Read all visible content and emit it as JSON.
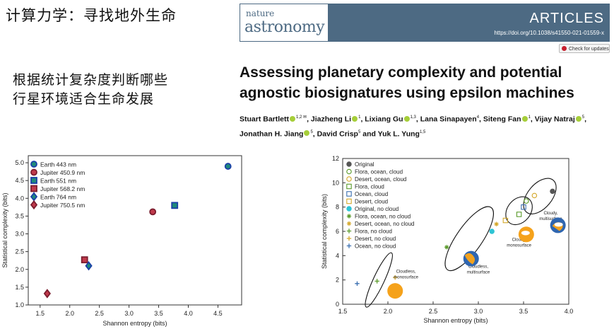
{
  "slide": {
    "title": "计算力学：寻找地外生命",
    "subtitle_line1": "根据统计复杂度判断哪些",
    "subtitle_line2": "行星环境适合生命发展"
  },
  "journal": {
    "name_top": "nature",
    "name_bottom": "astronomy",
    "section": "ARTICLES",
    "doi": "https://doi.org/10.1038/s41550-021-01559-x",
    "check_updates": "Check for updates"
  },
  "article": {
    "title_line1": "Assessing planetary complexity and potential",
    "title_line2": "agnostic biosignatures using epsilon machines"
  },
  "authors": [
    {
      "name": "Stuart Bartlett",
      "orcid": true,
      "sup": "1,2 ✉"
    },
    {
      "name": "Jiazheng Li",
      "orcid": true,
      "sup": "1"
    },
    {
      "name": "Lixiang Gu",
      "orcid": true,
      "sup": "1,3"
    },
    {
      "name": "Lana Sinapayen",
      "orcid": false,
      "sup": "4"
    },
    {
      "name": "Siteng Fan",
      "orcid": true,
      "sup": "1"
    },
    {
      "name": "Vijay Natraj",
      "orcid": true,
      "sup": "5"
    },
    {
      "name": "Jonathan H. Jiang",
      "orcid": true,
      "sup": "5"
    },
    {
      "name": "David Crisp",
      "orcid": false,
      "sup": "5"
    },
    {
      "name": "Yuk L. Yung",
      "orcid": false,
      "sup": "1,5"
    }
  ],
  "chart_data": [
    {
      "type": "scatter",
      "xlabel": "Shannon entropy (bits)",
      "ylabel": "Statistical complexity (bits)",
      "xlim": [
        1.3,
        4.9
      ],
      "ylim": [
        1.0,
        5.2
      ],
      "xticks": [
        1.5,
        2.0,
        2.5,
        3.0,
        3.5,
        4.0,
        4.5
      ],
      "yticks": [
        1.0,
        1.5,
        2.0,
        2.5,
        3.0,
        3.5,
        4.0,
        4.5,
        5.0
      ],
      "legend_position": "top-left",
      "series": [
        {
          "name": "Earth 443 nm",
          "marker": "circle",
          "fill": "#1e8a7a",
          "edge": "#1a3fa8",
          "points": [
            [
              4.67,
              4.9
            ]
          ]
        },
        {
          "name": "Jupiter 450.9 nm",
          "marker": "circle",
          "fill": "#c0394b",
          "edge": "#7a1d2e",
          "points": [
            [
              3.4,
              3.62
            ]
          ]
        },
        {
          "name": "Earth 551 nm",
          "marker": "square",
          "fill": "#1e8a7a",
          "edge": "#1a3fa8",
          "points": [
            [
              3.77,
              3.8
            ]
          ]
        },
        {
          "name": "Jupiter 568.2 nm",
          "marker": "square",
          "fill": "#c0394b",
          "edge": "#7a1d2e",
          "points": [
            [
              2.25,
              2.27
            ]
          ]
        },
        {
          "name": "Earth 764 nm",
          "marker": "diamond",
          "fill": "#1e8a7a",
          "edge": "#1a3fa8",
          "points": [
            [
              2.32,
              2.1
            ]
          ]
        },
        {
          "name": "Jupiter 750.5 nm",
          "marker": "diamond",
          "fill": "#c0394b",
          "edge": "#7a1d2e",
          "points": [
            [
              1.62,
              1.32
            ]
          ]
        }
      ]
    },
    {
      "type": "scatter",
      "xlabel": "Shannon entropy (bits)",
      "ylabel": "Statistical complexity (bits)",
      "xlim": [
        1.5,
        4.0
      ],
      "ylim": [
        0,
        12
      ],
      "xticks": [
        1.5,
        2.0,
        2.5,
        3.0,
        3.5,
        4.0
      ],
      "yticks": [
        0,
        2,
        4,
        6,
        8,
        10,
        12
      ],
      "legend_position": "top-left",
      "series": [
        {
          "name": "Original",
          "marker": "filled-circle",
          "color": "#555555",
          "points": [
            [
              3.82,
              9.3
            ]
          ]
        },
        {
          "name": "Flora, ocean, cloud",
          "marker": "circle",
          "color": "#5a9a2a",
          "points": [
            [
              3.53,
              8.5
            ]
          ]
        },
        {
          "name": "Desert, ocean, cloud",
          "marker": "circle",
          "color": "#d4a82a",
          "points": [
            [
              3.62,
              8.95
            ]
          ]
        },
        {
          "name": "Flora, cloud",
          "marker": "square",
          "color": "#5a9a2a",
          "points": [
            [
              3.45,
              7.4
            ]
          ]
        },
        {
          "name": "Ocean, cloud",
          "marker": "square",
          "color": "#3a6fb0",
          "points": [
            [
              3.5,
              8.0
            ]
          ]
        },
        {
          "name": "Desert, cloud",
          "marker": "square",
          "color": "#d4a82a",
          "points": [
            [
              3.3,
              6.9
            ]
          ]
        },
        {
          "name": "Original, no cloud",
          "marker": "filled-circle",
          "color": "#2ec4d4",
          "points": [
            [
              3.15,
              6.0
            ]
          ]
        },
        {
          "name": "Flora, ocean, no cloud",
          "marker": "asterisk",
          "color": "#5a9a2a",
          "points": [
            [
              2.65,
              4.7
            ]
          ]
        },
        {
          "name": "Desert, ocean, no cloud",
          "marker": "asterisk",
          "color": "#d4a82a",
          "points": [
            [
              3.2,
              6.6
            ]
          ]
        },
        {
          "name": "Flora, no cloud",
          "marker": "plus",
          "color": "#5a9a2a",
          "points": [
            [
              1.88,
              1.9
            ]
          ]
        },
        {
          "name": "Desert, no cloud",
          "marker": "plus",
          "color": "#d4a82a",
          "points": [
            [
              2.08,
              2.2
            ]
          ]
        },
        {
          "name": "Ocean, no cloud",
          "marker": "plus",
          "color": "#3a6fb0",
          "points": [
            [
              1.66,
              1.7
            ]
          ]
        }
      ],
      "ellipses": [
        {
          "cx": 1.9,
          "cy": 2.0,
          "rx": 0.33,
          "ry": 0.45,
          "angle": -25
        },
        {
          "cx": 2.9,
          "cy": 5.4,
          "rx": 0.42,
          "ry": 1.05,
          "angle": -35
        },
        {
          "cx": 3.45,
          "cy": 7.7,
          "rx": 0.17,
          "ry": 0.95,
          "angle": -40
        },
        {
          "cx": 3.68,
          "cy": 8.9,
          "rx": 0.23,
          "ry": 1.0,
          "angle": -40
        }
      ],
      "annotations": [
        {
          "text": [
            "Cloudless,",
            "monosurface"
          ],
          "x": 2.2,
          "y": 2.6
        },
        {
          "text": [
            "Cloudless,",
            "multisurface"
          ],
          "x": 3.0,
          "y": 3.0
        },
        {
          "text": [
            "Cloudy,",
            "monosurface"
          ],
          "x": 3.45,
          "y": 5.2
        },
        {
          "text": [
            "Cloudy,",
            "multisurface"
          ],
          "x": 3.8,
          "y": 7.4
        }
      ],
      "planet_icons": [
        {
          "kind": "orange-disk",
          "x": 2.08,
          "y": 1.1
        },
        {
          "kind": "earth-like",
          "x": 2.92,
          "y": 3.75
        },
        {
          "kind": "orange-cloud",
          "x": 3.53,
          "y": 5.75
        },
        {
          "kind": "earth-cloud",
          "x": 3.88,
          "y": 6.5
        }
      ]
    }
  ]
}
